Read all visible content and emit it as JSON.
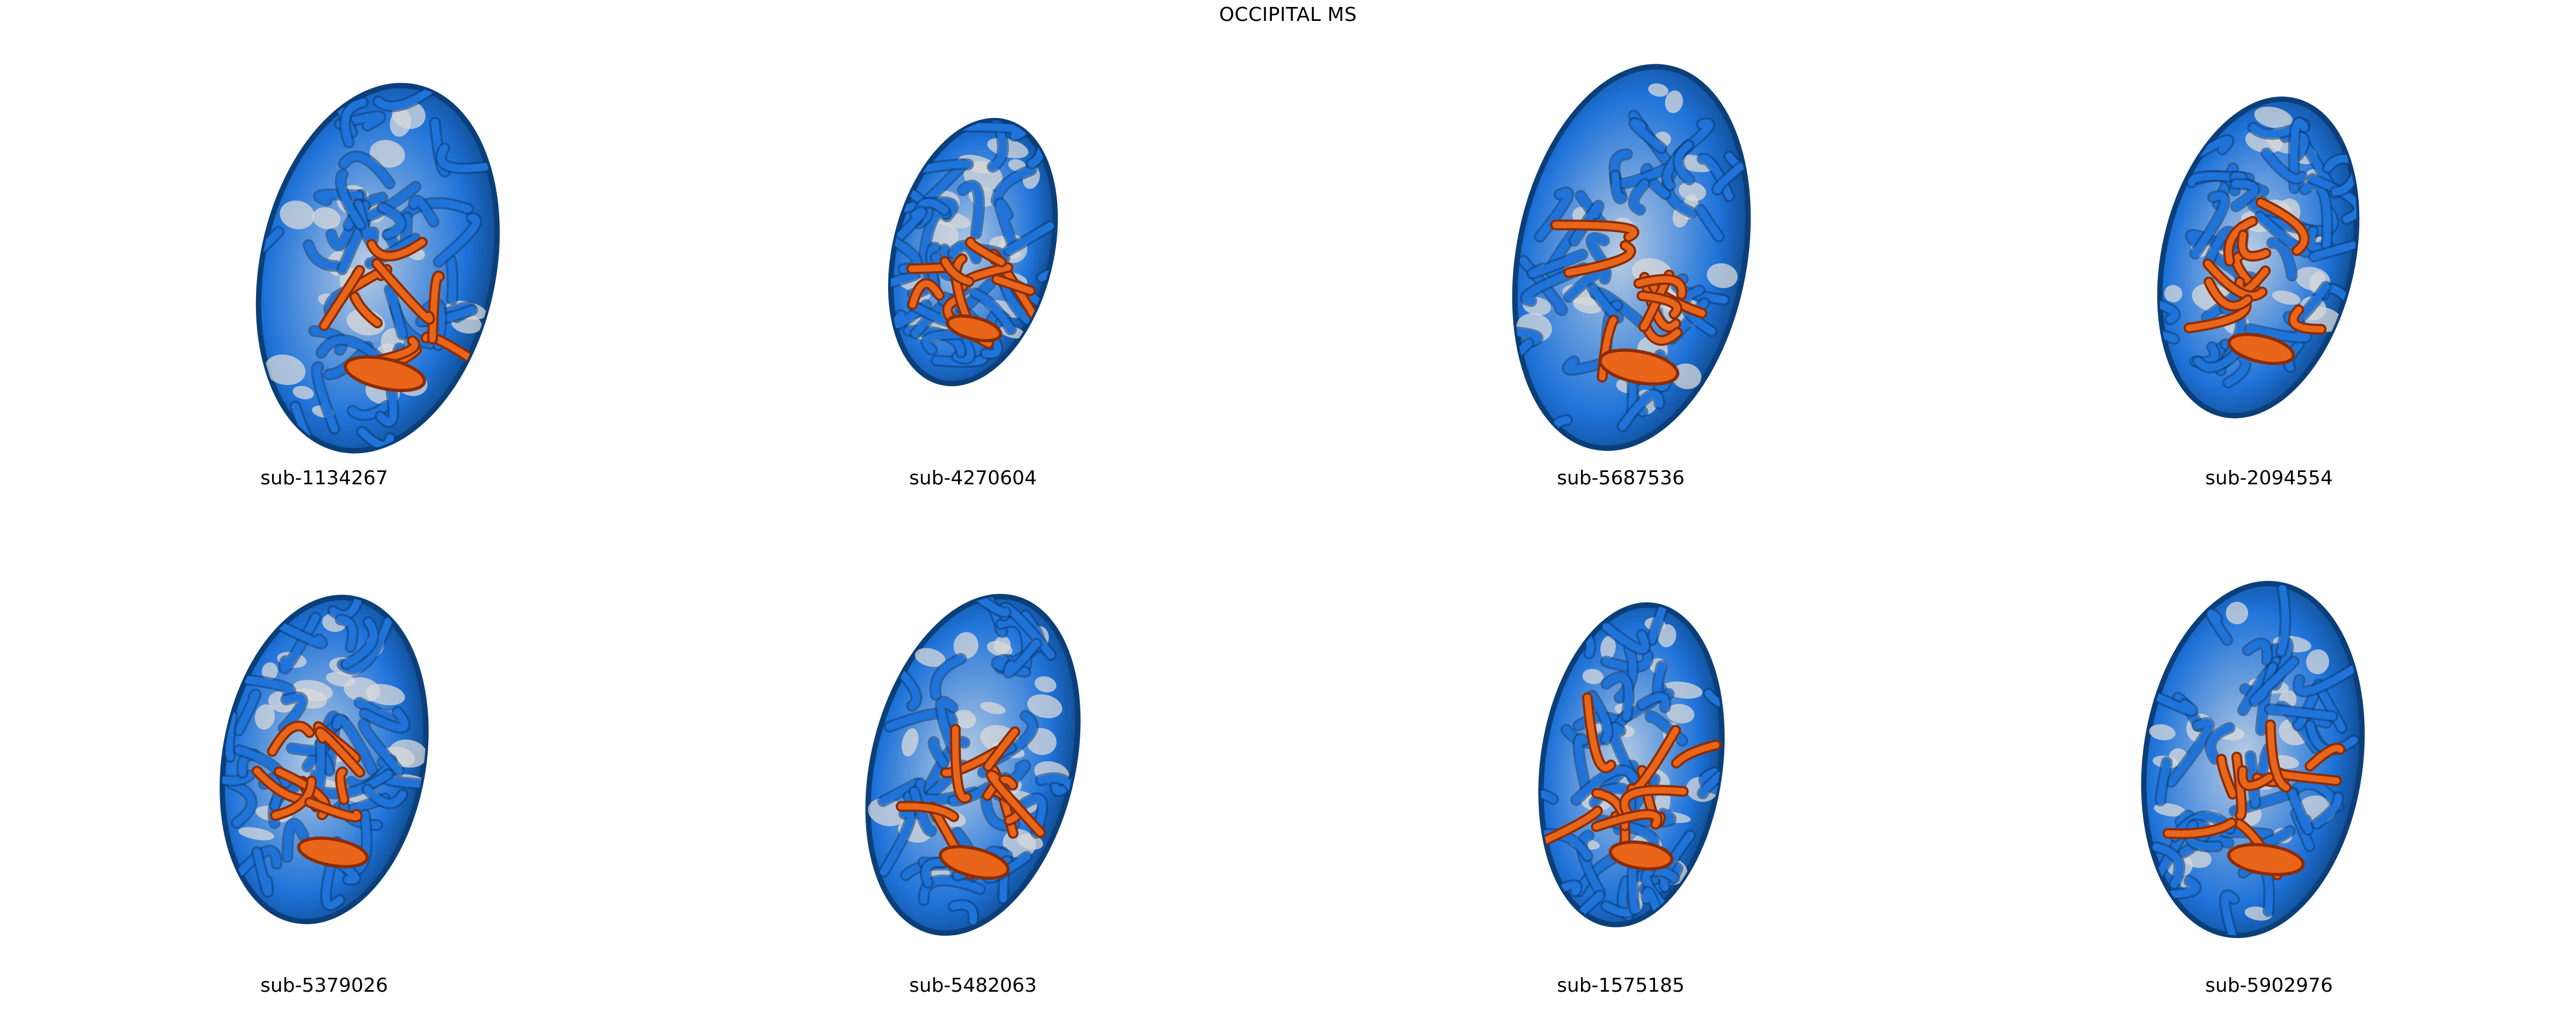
{
  "title": "OCCIPITAL  MS",
  "colors": {
    "cortex_blue": "#1f73d9",
    "cortex_dark_blue": "#0b3f7a",
    "cortex_light": "#b9cce2",
    "cortex_gray": "#d9d9d9",
    "region_orange": "#e8651a",
    "region_dark_orange": "#8a2c06"
  },
  "panels": [
    {
      "label": "sub-1134267",
      "image": "occipital-surface-render"
    },
    {
      "label": "sub-4270604",
      "image": "occipital-surface-render"
    },
    {
      "label": "sub-5687536",
      "image": "occipital-surface-render"
    },
    {
      "label": "sub-2094554",
      "image": "occipital-surface-render"
    },
    {
      "label": "sub-5379026",
      "image": "occipital-surface-render"
    },
    {
      "label": "sub-5482063",
      "image": "occipital-surface-render"
    },
    {
      "label": "sub-1575185",
      "image": "occipital-surface-render"
    },
    {
      "label": "sub-5902976",
      "image": "occipital-surface-render"
    }
  ]
}
